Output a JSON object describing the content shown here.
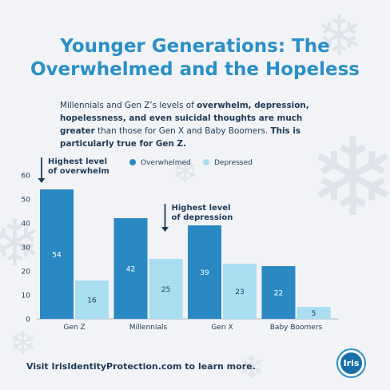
{
  "title_lines": [
    "Younger Generations: The",
    "Overwhelmed and the Hopeless"
  ],
  "subtitle": {
    "p1": "Millennials and Gen Z’s levels of ",
    "b1": "overwhelm, depression, hopelessness, and even suicidal thoughts are much greater",
    "p2": " than those for Gen X and Baby Boomers. ",
    "b2": "This is particularly true for Gen Z."
  },
  "footer": "Visit IrisIdentityProtection.com to learn more.",
  "logo_text": "Iris",
  "chart_data": {
    "type": "bar",
    "categories": [
      "Gen Z",
      "Millennials",
      "Gen X",
      "Baby Boomers"
    ],
    "series": [
      {
        "name": "Overwhelmed",
        "values": [
          54,
          42,
          39,
          22
        ],
        "color": "#2a89c2",
        "label_color": "#ffffff"
      },
      {
        "name": "Depressed",
        "values": [
          16,
          25,
          23,
          5
        ],
        "color": "#a9def0",
        "label_color": "#1f3b57"
      }
    ],
    "ylim": [
      0,
      60
    ],
    "yticks": [
      0,
      10,
      20,
      30,
      40,
      50,
      60
    ],
    "legend_position": "top",
    "grid": false,
    "annotations": [
      {
        "text_lines": [
          "Highest level",
          "of overwhelm"
        ],
        "category": "Gen Z",
        "series": "Overwhelmed"
      },
      {
        "text_lines": [
          "Highest level",
          "of depression"
        ],
        "category": "Millennials",
        "series": "Depressed"
      }
    ]
  }
}
